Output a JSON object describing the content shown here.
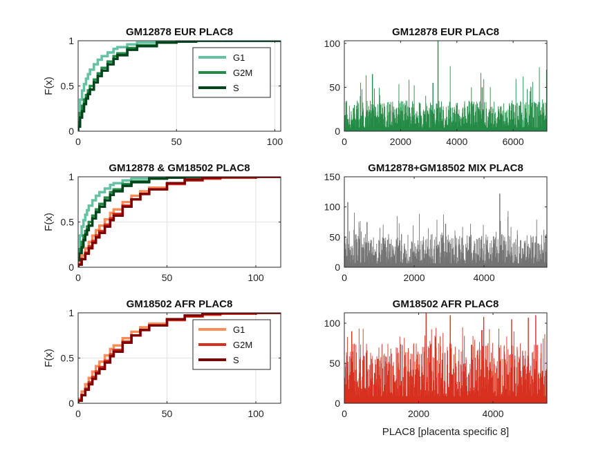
{
  "chart_data": [
    {
      "type": "line",
      "title": "GM12878 EUR PLAC8",
      "xlabel": "",
      "ylabel": "F(x)",
      "xlim": [
        0,
        103
      ],
      "ylim": [
        0,
        1
      ],
      "xticks": [
        "0",
        "50",
        "100"
      ],
      "yticks": [
        "0",
        "0.5",
        "1"
      ],
      "grid": true,
      "legend": {
        "show": true,
        "position": "top-right"
      },
      "series": [
        {
          "name": "G1",
          "color": "#66c2a4",
          "x": [
            0,
            1,
            2,
            3,
            4,
            5,
            6,
            8,
            10,
            12,
            15,
            18,
            20,
            25,
            30,
            40,
            50,
            60,
            70,
            103
          ],
          "values": [
            0.2,
            0.35,
            0.45,
            0.52,
            0.58,
            0.63,
            0.68,
            0.74,
            0.79,
            0.83,
            0.87,
            0.91,
            0.93,
            0.96,
            0.98,
            0.99,
            0.995,
            1.0,
            1.0,
            1.0
          ]
        },
        {
          "name": "G2M",
          "color": "#238b45",
          "x": [
            0,
            1,
            2,
            3,
            4,
            5,
            6,
            8,
            10,
            12,
            15,
            18,
            20,
            25,
            30,
            40,
            50,
            60,
            75
          ],
          "values": [
            0.1,
            0.2,
            0.28,
            0.35,
            0.4,
            0.45,
            0.5,
            0.57,
            0.64,
            0.7,
            0.77,
            0.83,
            0.86,
            0.92,
            0.95,
            0.98,
            0.99,
            1.0,
            1.0
          ]
        },
        {
          "name": "S",
          "color": "#00441b",
          "x": [
            0,
            1,
            2,
            3,
            4,
            5,
            6,
            8,
            10,
            12,
            15,
            18,
            20,
            25,
            30,
            40,
            50,
            60,
            75
          ],
          "values": [
            0.05,
            0.15,
            0.22,
            0.3,
            0.36,
            0.41,
            0.46,
            0.54,
            0.61,
            0.67,
            0.74,
            0.8,
            0.84,
            0.9,
            0.94,
            0.98,
            0.99,
            1.0,
            1.0
          ]
        }
      ]
    },
    {
      "type": "bar",
      "title": "GM12878 EUR PLAC8",
      "xlabel": "",
      "ylabel": "",
      "xlim": [
        0,
        7200
      ],
      "ylim": [
        0,
        103
      ],
      "xticks": [
        "0",
        "2000",
        "4000",
        "6000"
      ],
      "yticks": [
        "0",
        "50",
        "100"
      ],
      "grid": false,
      "color": "#238b45",
      "n_cells": 7200,
      "values_summary": {
        "typical_range": [
          0,
          35
        ],
        "max": 103
      },
      "peaks": [
        {
          "x": 1000,
          "y": 65
        },
        {
          "x": 3330,
          "y": 103
        },
        {
          "x": 3150,
          "y": 55
        },
        {
          "x": 4900,
          "y": 50
        },
        {
          "x": 7190,
          "y": 70
        }
      ]
    },
    {
      "type": "line",
      "title": "GM12878 & GM18502 PLAC8",
      "xlabel": "",
      "ylabel": "F(x)",
      "xlim": [
        0,
        114
      ],
      "ylim": [
        0,
        1
      ],
      "xticks": [
        "0",
        "50",
        "100"
      ],
      "yticks": [
        "0",
        "0.5",
        "1"
      ],
      "grid": true,
      "legend": {
        "show": false
      },
      "series": [
        {
          "color": "#66c2a4",
          "x": [
            0,
            1,
            2,
            3,
            4,
            5,
            6,
            8,
            10,
            12,
            15,
            18,
            20,
            25,
            30,
            40,
            50,
            60,
            70
          ],
          "values": [
            0.2,
            0.35,
            0.45,
            0.52,
            0.58,
            0.63,
            0.68,
            0.74,
            0.79,
            0.83,
            0.87,
            0.91,
            0.93,
            0.96,
            0.98,
            0.99,
            0.995,
            1.0,
            1.0
          ]
        },
        {
          "color": "#238b45",
          "x": [
            0,
            1,
            2,
            3,
            4,
            5,
            6,
            8,
            10,
            12,
            15,
            18,
            20,
            25,
            30,
            40,
            50,
            60,
            75
          ],
          "values": [
            0.1,
            0.2,
            0.28,
            0.35,
            0.4,
            0.45,
            0.5,
            0.57,
            0.64,
            0.7,
            0.77,
            0.83,
            0.86,
            0.92,
            0.95,
            0.98,
            0.99,
            1.0,
            1.0
          ]
        },
        {
          "color": "#00441b",
          "x": [
            0,
            1,
            2,
            3,
            4,
            5,
            6,
            8,
            10,
            12,
            15,
            18,
            20,
            25,
            30,
            40,
            50,
            60,
            75
          ],
          "values": [
            0.05,
            0.15,
            0.22,
            0.3,
            0.36,
            0.41,
            0.46,
            0.54,
            0.61,
            0.67,
            0.74,
            0.8,
            0.84,
            0.9,
            0.94,
            0.98,
            0.99,
            1.0,
            1.0
          ]
        },
        {
          "color": "#fc8d59",
          "x": [
            0,
            2,
            4,
            6,
            8,
            10,
            12,
            15,
            18,
            20,
            25,
            30,
            35,
            40,
            50,
            60,
            70,
            80,
            90,
            100,
            114
          ],
          "values": [
            0.05,
            0.13,
            0.21,
            0.28,
            0.35,
            0.41,
            0.46,
            0.53,
            0.6,
            0.64,
            0.72,
            0.79,
            0.84,
            0.88,
            0.93,
            0.96,
            0.98,
            0.99,
            0.995,
            1.0,
            1.0
          ]
        },
        {
          "color": "#d7301f",
          "x": [
            0,
            2,
            4,
            6,
            8,
            10,
            12,
            15,
            18,
            20,
            25,
            30,
            35,
            40,
            50,
            60,
            70,
            80,
            100
          ],
          "values": [
            0.03,
            0.09,
            0.16,
            0.23,
            0.29,
            0.35,
            0.4,
            0.47,
            0.54,
            0.59,
            0.68,
            0.75,
            0.81,
            0.86,
            0.92,
            0.96,
            0.98,
            0.99,
            1.0
          ]
        },
        {
          "color": "#7f0000",
          "x": [
            0,
            2,
            4,
            6,
            8,
            10,
            12,
            15,
            18,
            20,
            25,
            30,
            35,
            40,
            50,
            60,
            70,
            80,
            86
          ],
          "values": [
            0.03,
            0.09,
            0.15,
            0.21,
            0.27,
            0.33,
            0.38,
            0.45,
            0.52,
            0.57,
            0.67,
            0.75,
            0.81,
            0.86,
            0.93,
            0.97,
            0.99,
            1.0,
            1.0
          ]
        }
      ]
    },
    {
      "type": "bar",
      "title": "GM12878+GM18502 MIX PLAC8",
      "xlabel": "",
      "ylabel": "",
      "xlim": [
        0,
        5800
      ],
      "ylim": [
        0,
        150
      ],
      "xticks": [
        "0",
        "2000",
        "4000"
      ],
      "yticks": [
        "0",
        "50",
        "100",
        "150"
      ],
      "grid": false,
      "color": "#737373",
      "n_cells": 5800,
      "values_summary": {
        "typical_range": [
          0,
          55
        ],
        "max": 122
      },
      "peaks": [
        {
          "x": 100,
          "y": 108
        },
        {
          "x": 4450,
          "y": 122
        },
        {
          "x": 650,
          "y": 75
        },
        {
          "x": 2900,
          "y": 72
        }
      ]
    },
    {
      "type": "line",
      "title": "GM18502 AFR PLAC8",
      "xlabel": "",
      "ylabel": "F(x)",
      "xlim": [
        0,
        114
      ],
      "ylim": [
        0,
        1
      ],
      "xticks": [
        "0",
        "50",
        "100"
      ],
      "yticks": [
        "0",
        "0.5",
        "1"
      ],
      "grid": true,
      "legend": {
        "show": true,
        "position": "top-right"
      },
      "series": [
        {
          "name": "G1",
          "color": "#fc8d59",
          "x": [
            0,
            2,
            4,
            6,
            8,
            10,
            12,
            15,
            18,
            20,
            25,
            30,
            35,
            40,
            50,
            60,
            70,
            80,
            90,
            100,
            114
          ],
          "values": [
            0.05,
            0.13,
            0.21,
            0.28,
            0.35,
            0.41,
            0.46,
            0.53,
            0.6,
            0.64,
            0.72,
            0.79,
            0.84,
            0.88,
            0.93,
            0.96,
            0.98,
            0.99,
            0.995,
            1.0,
            1.0
          ]
        },
        {
          "name": "G2M",
          "color": "#d7301f",
          "x": [
            0,
            2,
            4,
            6,
            8,
            10,
            12,
            15,
            18,
            20,
            25,
            30,
            35,
            40,
            50,
            60,
            70,
            80,
            100
          ],
          "values": [
            0.03,
            0.09,
            0.16,
            0.23,
            0.29,
            0.35,
            0.4,
            0.47,
            0.54,
            0.59,
            0.68,
            0.75,
            0.81,
            0.86,
            0.92,
            0.96,
            0.98,
            0.99,
            1.0
          ]
        },
        {
          "name": "S",
          "color": "#7f0000",
          "x": [
            0,
            2,
            4,
            6,
            8,
            10,
            12,
            15,
            18,
            20,
            25,
            30,
            35,
            40,
            50,
            60,
            70,
            80,
            86
          ],
          "values": [
            0.03,
            0.09,
            0.15,
            0.21,
            0.27,
            0.33,
            0.38,
            0.45,
            0.52,
            0.57,
            0.67,
            0.75,
            0.81,
            0.86,
            0.93,
            0.97,
            0.99,
            1.0,
            1.0
          ]
        }
      ]
    },
    {
      "type": "bar",
      "title": "GM18502 AFR PLAC8",
      "xlabel": "PLAC8 [placenta specific 8]",
      "ylabel": "",
      "xlim": [
        0,
        5450
      ],
      "ylim": [
        0,
        113
      ],
      "xticks": [
        "0",
        "2000",
        "4000"
      ],
      "yticks": [
        "0",
        "50",
        "100"
      ],
      "grid": false,
      "color": "#d7301f",
      "n_cells": 5450,
      "values_summary": {
        "typical_range": [
          0,
          75
        ],
        "max": 113
      },
      "peaks": [
        {
          "x": 2200,
          "y": 113
        },
        {
          "x": 2850,
          "y": 110
        },
        {
          "x": 3750,
          "y": 108
        },
        {
          "x": 4500,
          "y": 105
        },
        {
          "x": 4950,
          "y": 107
        },
        {
          "x": 5150,
          "y": 110
        },
        {
          "x": 200,
          "y": 90
        }
      ]
    }
  ]
}
